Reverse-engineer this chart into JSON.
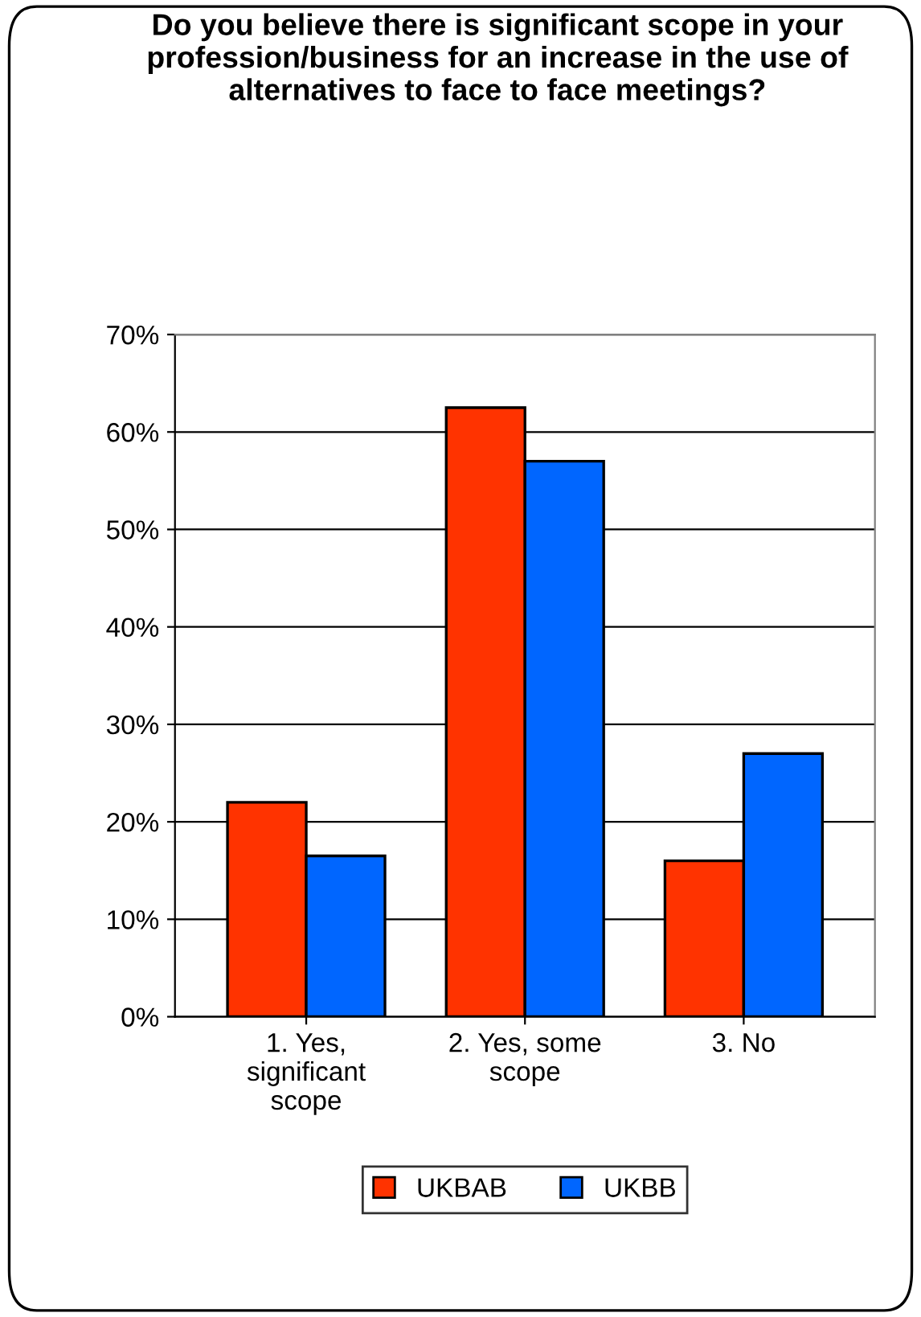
{
  "chart_data": {
    "type": "bar",
    "title": "Do you believe there is significant scope in your profession/business for an increase in the use of alternatives to face to face meetings?",
    "categories": [
      "1. Yes,\nsignificant\nscope",
      "2. Yes, some\nscope",
      "3. No"
    ],
    "series": [
      {
        "name": "UKBAB",
        "color": "#ff3300",
        "values": [
          22,
          62.5,
          16
        ]
      },
      {
        "name": "UKBB",
        "color": "#0066ff",
        "values": [
          16.5,
          57,
          27
        ]
      }
    ],
    "ylim": [
      0,
      70
    ],
    "yticks": [
      {
        "value": 0,
        "label": "0%"
      },
      {
        "value": 10,
        "label": "10%"
      },
      {
        "value": 20,
        "label": "20%"
      },
      {
        "value": 30,
        "label": "30%"
      },
      {
        "value": 40,
        "label": "40%"
      },
      {
        "value": 50,
        "label": "50%"
      },
      {
        "value": 60,
        "label": "60%"
      },
      {
        "value": 70,
        "label": "70%"
      }
    ],
    "grid": "y",
    "legend": "bottom"
  }
}
